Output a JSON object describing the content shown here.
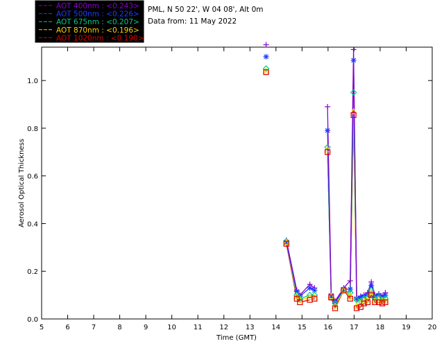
{
  "chart_data": {
    "type": "line",
    "xlabel": "Time (GMT)",
    "ylabel": "Aerosol Optical Thickness",
    "xlim": [
      5,
      20
    ],
    "ylim": [
      0,
      1.14
    ],
    "xticks": [
      5,
      6,
      7,
      8,
      9,
      10,
      11,
      12,
      13,
      14,
      15,
      16,
      17,
      18,
      19,
      20
    ],
    "yticks": [
      0.0,
      0.2,
      0.4,
      0.6,
      0.8,
      1.0
    ],
    "ytick_labels": [
      "0.0",
      "0.2",
      "0.4",
      "0.6",
      "0.8",
      "1.0"
    ],
    "info_lines": [
      "PML, N 50 22', W 04 08', Alt 0m",
      "Data from: 11 May 2022"
    ],
    "x": [
      13.62,
      14.4,
      14.8,
      14.92,
      15.3,
      15.48,
      15.98,
      16.12,
      16.27,
      16.6,
      16.85,
      16.98,
      17.1,
      17.25,
      17.38,
      17.52,
      17.66,
      17.8,
      17.95,
      18.08,
      18.2
    ],
    "series": [
      {
        "name": "AOT  400nm : <0.243>",
        "legend": "AOT  400nm : <0.243>",
        "color": "#8800cc",
        "marker": "plus",
        "values": [
          1.15,
          0.33,
          0.12,
          0.1,
          0.145,
          0.13,
          0.89,
          0.105,
          0.075,
          0.13,
          0.16,
          1.13,
          0.09,
          0.095,
          0.1,
          0.11,
          0.155,
          0.1,
          0.105,
          0.095,
          0.11
        ]
      },
      {
        "name": "AOT  500nm : <0.226>",
        "legend": "AOT  500nm : <0.226>",
        "color": "#1e3cff",
        "marker": "star",
        "values": [
          1.1,
          0.32,
          0.115,
          0.095,
          0.13,
          0.12,
          0.79,
          0.095,
          0.07,
          0.125,
          0.125,
          1.085,
          0.085,
          0.09,
          0.095,
          0.1,
          0.14,
          0.095,
          0.1,
          0.09,
          0.1
        ]
      },
      {
        "name": "AOT  675nm : <0.207>",
        "legend": "AOT  675nm : <0.207>",
        "color": "#00cc88",
        "marker": "diamond",
        "values": [
          1.05,
          0.325,
          0.1,
          0.085,
          0.1,
          0.1,
          0.72,
          0.09,
          0.065,
          0.12,
          0.11,
          0.95,
          0.08,
          0.075,
          0.085,
          0.09,
          0.12,
          0.085,
          0.09,
          0.08,
          0.085
        ]
      },
      {
        "name": "AOT  870nm : <0.196>",
        "legend": "AOT  870nm : <0.196>",
        "color": "#ffd700",
        "marker": "triangle",
        "values": [
          1.04,
          0.32,
          0.095,
          0.08,
          0.09,
          0.09,
          0.71,
          0.095,
          0.055,
          0.12,
          0.095,
          0.87,
          0.055,
          0.065,
          0.075,
          0.08,
          0.11,
          0.075,
          0.08,
          0.075,
          0.075
        ]
      },
      {
        "name": "AOT 1020nm : <0.190>",
        "legend": "AOT 1020nm : <0.190>",
        "color": "#dd0000",
        "marker": "square",
        "values": [
          1.035,
          0.315,
          0.085,
          0.07,
          0.08,
          0.085,
          0.7,
          0.09,
          0.045,
          0.12,
          0.085,
          0.855,
          0.045,
          0.05,
          0.065,
          0.07,
          0.1,
          0.07,
          0.07,
          0.065,
          0.07
        ]
      }
    ]
  }
}
